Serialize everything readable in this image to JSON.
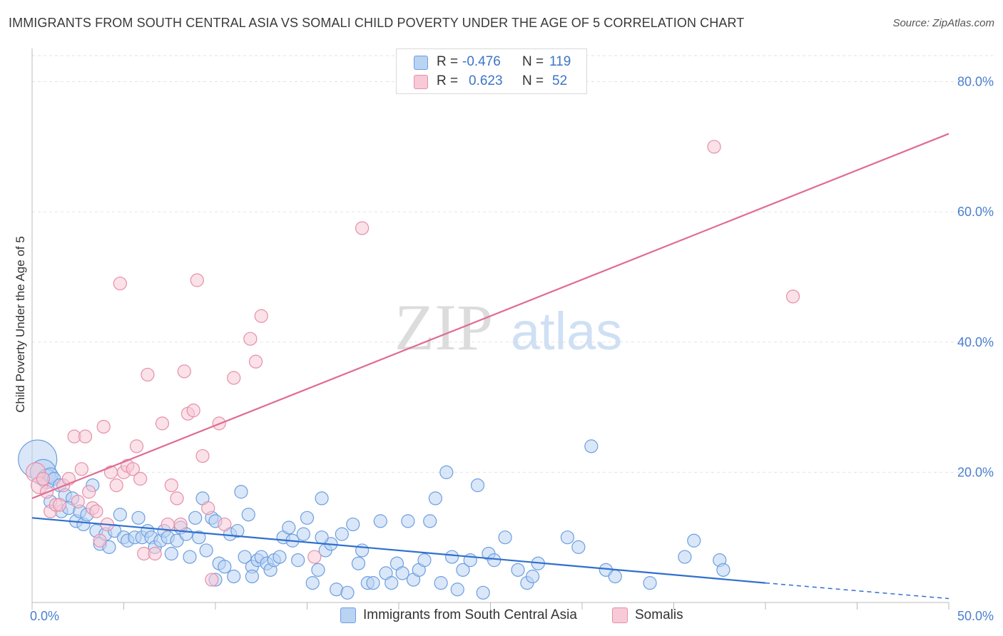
{
  "title": "IMMIGRANTS FROM SOUTH CENTRAL ASIA VS SOMALI CHILD POVERTY UNDER THE AGE OF 5 CORRELATION CHART",
  "source": "Source: ZipAtlas.com",
  "watermark": {
    "part1": "ZIP",
    "part2": "atlas"
  },
  "legend_top": {
    "rows": [
      {
        "r_label": "R =",
        "r_value": "-0.476",
        "n_label": "N =",
        "n_value": "119"
      },
      {
        "r_label": "R =",
        "r_value": "0.623",
        "n_label": "N =",
        "n_value": "52"
      }
    ]
  },
  "legend_bottom": [
    {
      "name": "Immigrants from South Central Asia"
    },
    {
      "name": "Somalis"
    }
  ],
  "colors": {
    "blue_fill": "#b9d3f3",
    "blue_stroke": "#6d9ee0",
    "blue_line": "#2f6fce",
    "pink_fill": "#f8c9d6",
    "pink_stroke": "#e58fab",
    "pink_line": "#e06b93",
    "tick_text": "#4a7fd0",
    "grid": "#e3e3e3"
  },
  "chart_data": {
    "type": "scatter",
    "title": "IMMIGRANTS FROM SOUTH CENTRAL ASIA VS SOMALI CHILD POVERTY UNDER THE AGE OF 5 CORRELATION CHART",
    "xlabel": "",
    "ylabel": "Child Poverty Under the Age of 5",
    "xlim": [
      0,
      50
    ],
    "ylim": [
      0,
      84
    ],
    "x_tick_labels": [
      "0.0%",
      "50.0%"
    ],
    "y_ticks": [
      20,
      40,
      60,
      80
    ],
    "y_tick_labels": [
      "20.0%",
      "40.0%",
      "60.0%",
      "80.0%"
    ],
    "grid": "horizontal dashed",
    "series": [
      {
        "name": "Immigrants from South Central Asia",
        "r": -0.476,
        "n": 119,
        "trend": {
          "x0": 0,
          "y0": 13.0,
          "x1": 40,
          "y1": 3.0,
          "dashed_to_x": 50,
          "dashed_to_y": 0.6
        },
        "points": [
          [
            0.3,
            22,
            3
          ],
          [
            0.6,
            20,
            2
          ],
          [
            0.8,
            19,
            1.5
          ],
          [
            1.0,
            19.5,
            1.2
          ],
          [
            1.2,
            19,
            1
          ],
          [
            1.0,
            15.5,
            1
          ],
          [
            1.5,
            18,
            1
          ],
          [
            1.8,
            16.5,
            1
          ],
          [
            1.6,
            14,
            1
          ],
          [
            2.2,
            16,
            1
          ],
          [
            2.0,
            14.5,
            1
          ],
          [
            2.4,
            12.5,
            1
          ],
          [
            2.6,
            14,
            1
          ],
          [
            2.8,
            12,
            1
          ],
          [
            3.0,
            13.5,
            1
          ],
          [
            3.3,
            18,
            1
          ],
          [
            3.5,
            11,
            1
          ],
          [
            3.7,
            9,
            1
          ],
          [
            4.0,
            10.5,
            1
          ],
          [
            4.2,
            8.5,
            1
          ],
          [
            4.5,
            11,
            1
          ],
          [
            4.8,
            13.5,
            1
          ],
          [
            5.0,
            10,
            1
          ],
          [
            5.2,
            9.5,
            1
          ],
          [
            5.6,
            10,
            1
          ],
          [
            5.8,
            13,
            1
          ],
          [
            6.0,
            10,
            1
          ],
          [
            6.3,
            11,
            1
          ],
          [
            6.5,
            10,
            1
          ],
          [
            6.7,
            8.5,
            1
          ],
          [
            7.0,
            9.5,
            1
          ],
          [
            7.2,
            11,
            1
          ],
          [
            7.4,
            10,
            1
          ],
          [
            7.6,
            7.5,
            1
          ],
          [
            7.9,
            9.5,
            1
          ],
          [
            8.1,
            11.5,
            1
          ],
          [
            8.4,
            10.5,
            1
          ],
          [
            8.6,
            7,
            1
          ],
          [
            8.9,
            13,
            1
          ],
          [
            9.1,
            10,
            1
          ],
          [
            9.3,
            16,
            1
          ],
          [
            9.5,
            8,
            1
          ],
          [
            9.8,
            13,
            1
          ],
          [
            10.0,
            12.5,
            1
          ],
          [
            10.2,
            6,
            1
          ],
          [
            10.5,
            5.5,
            1
          ],
          [
            10.8,
            10.5,
            1
          ],
          [
            11.0,
            4,
            1
          ],
          [
            11.2,
            11,
            1
          ],
          [
            11.4,
            17,
            1
          ],
          [
            11.6,
            7,
            1
          ],
          [
            11.8,
            13.5,
            1
          ],
          [
            12.0,
            5.5,
            1
          ],
          [
            12.3,
            6.5,
            1
          ],
          [
            12.5,
            7,
            1
          ],
          [
            12.8,
            6,
            1
          ],
          [
            13.0,
            5,
            1
          ],
          [
            13.2,
            6.5,
            1
          ],
          [
            13.5,
            7,
            1
          ],
          [
            13.7,
            10,
            1
          ],
          [
            14.0,
            11.5,
            1
          ],
          [
            14.2,
            9.5,
            1
          ],
          [
            14.5,
            6.5,
            1
          ],
          [
            14.8,
            10.5,
            1
          ],
          [
            15.0,
            13,
            1
          ],
          [
            15.3,
            3,
            1
          ],
          [
            15.6,
            5,
            1
          ],
          [
            15.8,
            16,
            1
          ],
          [
            16.0,
            8,
            1
          ],
          [
            16.3,
            9,
            1
          ],
          [
            16.6,
            2,
            1
          ],
          [
            16.9,
            10.5,
            1
          ],
          [
            17.2,
            1.5,
            1
          ],
          [
            17.5,
            12,
            1
          ],
          [
            17.8,
            6,
            1
          ],
          [
            18.0,
            8,
            1
          ],
          [
            18.3,
            3,
            1
          ],
          [
            18.6,
            3,
            1
          ],
          [
            19.0,
            12.5,
            1
          ],
          [
            19.3,
            4.5,
            1
          ],
          [
            19.6,
            3,
            1
          ],
          [
            19.9,
            6,
            1
          ],
          [
            20.2,
            4.5,
            1
          ],
          [
            20.5,
            12.5,
            1
          ],
          [
            20.8,
            3.5,
            1
          ],
          [
            21.1,
            5,
            1
          ],
          [
            21.4,
            6.5,
            1
          ],
          [
            21.7,
            12.5,
            1
          ],
          [
            22.0,
            16,
            1
          ],
          [
            22.3,
            3,
            1
          ],
          [
            22.6,
            20,
            1
          ],
          [
            22.9,
            7,
            1
          ],
          [
            23.2,
            2,
            1
          ],
          [
            23.5,
            5,
            1
          ],
          [
            23.9,
            6.5,
            1
          ],
          [
            24.3,
            18,
            1
          ],
          [
            24.6,
            1.5,
            1
          ],
          [
            24.9,
            7.5,
            1
          ],
          [
            25.2,
            6.5,
            1
          ],
          [
            25.8,
            10,
            1
          ],
          [
            26.5,
            5,
            1
          ],
          [
            27.0,
            3,
            1
          ],
          [
            27.3,
            4,
            1
          ],
          [
            27.6,
            6,
            1
          ],
          [
            29.2,
            10,
            1
          ],
          [
            29.8,
            8.5,
            1
          ],
          [
            30.5,
            24,
            1
          ],
          [
            31.3,
            5,
            1
          ],
          [
            31.8,
            4,
            1
          ],
          [
            33.7,
            3,
            1
          ],
          [
            35.6,
            7,
            1
          ],
          [
            36.1,
            9.5,
            1
          ],
          [
            37.5,
            6.5,
            1
          ],
          [
            37.7,
            5,
            1
          ],
          [
            10.0,
            3.5,
            1
          ],
          [
            15.8,
            10,
            1
          ],
          [
            12.0,
            4,
            1
          ]
        ]
      },
      {
        "name": "Somalis",
        "r": 0.623,
        "n": 52,
        "trend": {
          "x0": 0,
          "y0": 16.0,
          "x1": 50,
          "y1": 72.0
        },
        "points": [
          [
            0.2,
            20,
            1.5
          ],
          [
            0.4,
            18,
            1.3
          ],
          [
            0.6,
            19,
            1
          ],
          [
            0.8,
            17,
            1
          ],
          [
            1.0,
            14,
            1
          ],
          [
            1.3,
            15,
            1
          ],
          [
            1.5,
            15,
            1
          ],
          [
            1.7,
            18,
            1
          ],
          [
            2.0,
            19,
            1
          ],
          [
            2.3,
            25.5,
            1
          ],
          [
            2.5,
            15.5,
            1
          ],
          [
            2.7,
            20.5,
            1
          ],
          [
            2.9,
            25.5,
            1
          ],
          [
            3.1,
            17,
            1
          ],
          [
            3.3,
            14.5,
            1
          ],
          [
            3.5,
            14,
            1
          ],
          [
            3.7,
            9.5,
            1
          ],
          [
            3.9,
            27,
            1
          ],
          [
            4.1,
            12,
            1
          ],
          [
            4.3,
            20,
            1
          ],
          [
            4.6,
            18,
            1
          ],
          [
            4.8,
            49,
            1
          ],
          [
            5.0,
            20,
            1
          ],
          [
            5.2,
            21,
            1
          ],
          [
            5.5,
            20.5,
            1
          ],
          [
            5.7,
            24,
            1
          ],
          [
            5.9,
            19,
            1
          ],
          [
            6.1,
            7.5,
            1
          ],
          [
            6.3,
            35,
            1
          ],
          [
            6.7,
            7.5,
            1
          ],
          [
            7.1,
            27.5,
            1
          ],
          [
            7.4,
            12,
            1
          ],
          [
            7.6,
            18,
            1
          ],
          [
            7.9,
            16,
            1
          ],
          [
            8.1,
            12,
            1
          ],
          [
            8.3,
            35.5,
            1
          ],
          [
            8.5,
            29,
            1
          ],
          [
            8.8,
            29.5,
            1
          ],
          [
            9.0,
            49.5,
            1
          ],
          [
            9.3,
            22.5,
            1
          ],
          [
            9.6,
            14.5,
            1
          ],
          [
            9.8,
            3.5,
            1
          ],
          [
            10.2,
            27.5,
            1
          ],
          [
            10.5,
            12,
            1
          ],
          [
            11.0,
            34.5,
            1
          ],
          [
            11.9,
            40.5,
            1
          ],
          [
            12.2,
            37,
            1
          ],
          [
            12.5,
            44,
            1
          ],
          [
            15.4,
            7,
            1
          ],
          [
            18.0,
            57.5,
            1
          ],
          [
            37.2,
            70,
            1
          ],
          [
            41.5,
            47,
            1
          ]
        ]
      }
    ]
  }
}
